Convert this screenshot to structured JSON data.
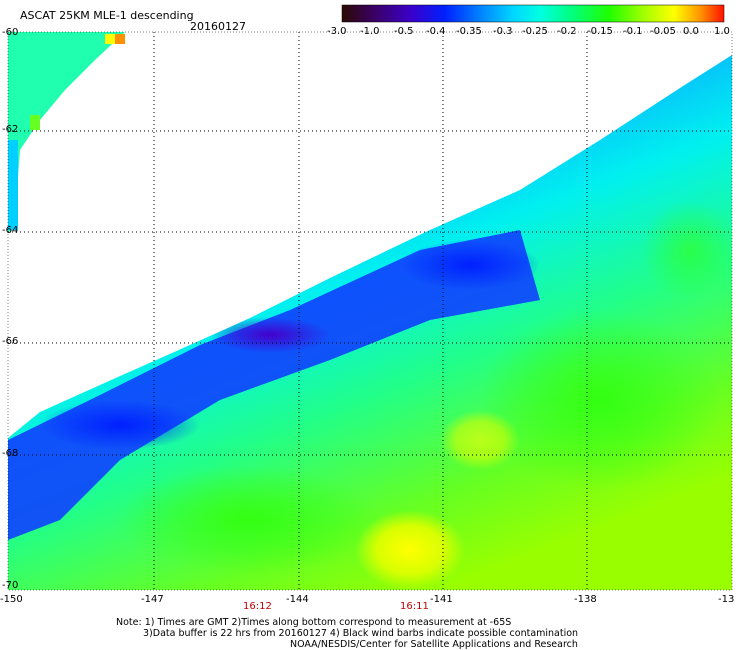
{
  "header": {
    "title": "ASCAT 25KM MLE-1 descending",
    "date": "20160127"
  },
  "colorbar": {
    "labels": [
      "-3.0",
      "-1.0",
      "-0.5",
      "-0.4",
      "-0.35",
      "-0.3",
      "-0.25",
      "-0.2",
      "-0.15",
      "-0.1",
      "-0.05",
      "0.0",
      "1.0"
    ],
    "colors": [
      "#2b0000",
      "#2a0066",
      "#3300cc",
      "#0018ff",
      "#0070ff",
      "#00c0ff",
      "#00ffdd",
      "#00ff66",
      "#33ff00",
      "#bbff00",
      "#ffff00",
      "#ff8000",
      "#ff1000"
    ]
  },
  "map": {
    "lat_labels": [
      "-60",
      "-62",
      "-64",
      "-66",
      "-68",
      "-70"
    ],
    "lon_labels": [
      "-150",
      "-147",
      "-144",
      "-141",
      "-138",
      "-13"
    ],
    "times": [
      "16:12",
      "16:11"
    ]
  },
  "footer": {
    "line1": "Note: 1) Times are GMT 2)Times along bottom correspond to measurement at -65S",
    "line2": "3)Data buffer is 22 hrs from 20160127 4) Black wind barbs indicate possible contamination",
    "line3": "NOAA/NESDIS/Center for Satellite Applications and Research"
  }
}
